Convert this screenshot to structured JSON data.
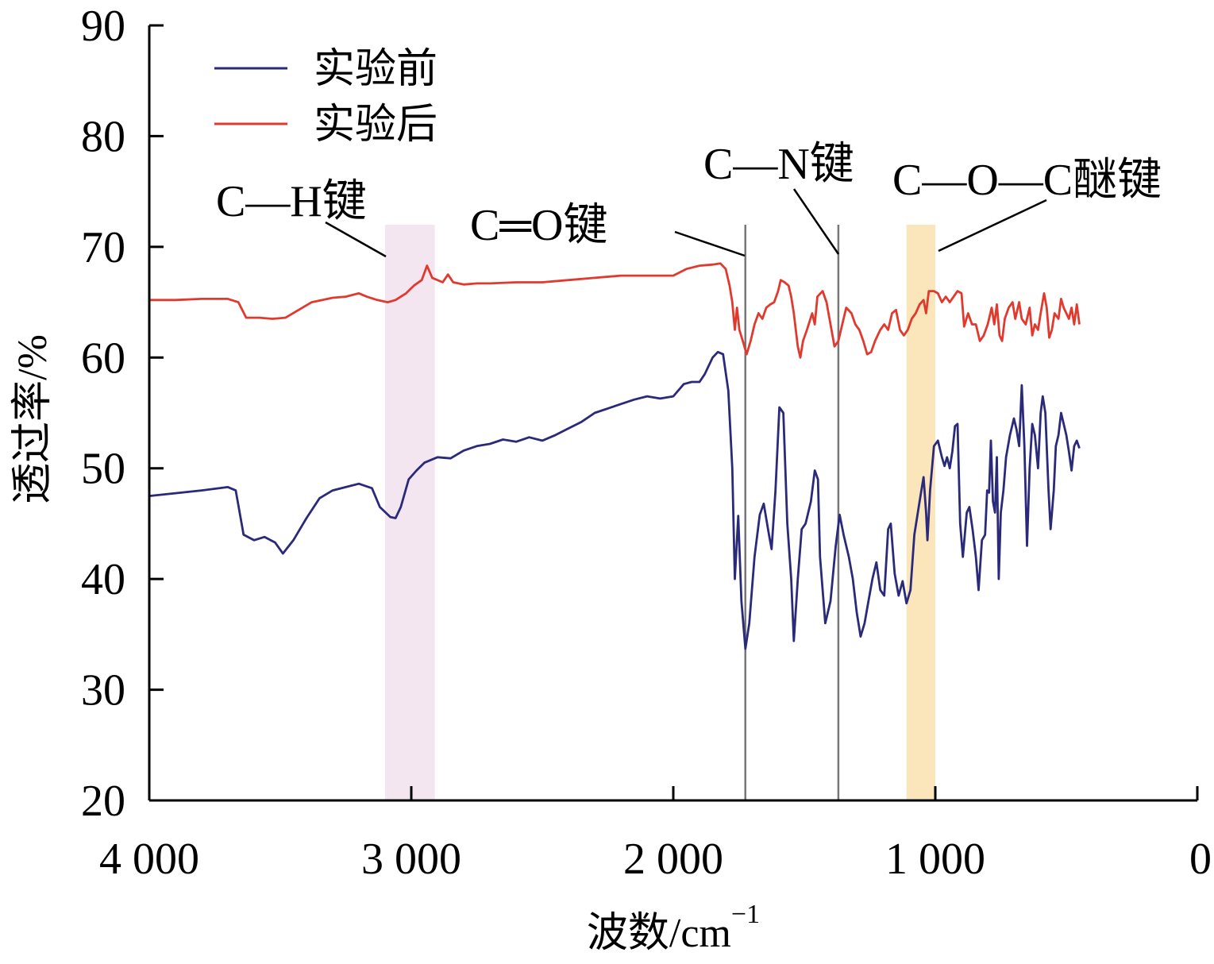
{
  "chart_data": {
    "type": "line",
    "xlabel": "波数/cm",
    "xlabel_sup": "−1",
    "ylabel": "透过率/%",
    "xlim": [
      4000,
      0
    ],
    "ylim": [
      20,
      90
    ],
    "x_ticks": [
      4000,
      3000,
      2000,
      1000,
      0
    ],
    "x_tick_labels": [
      "4 000",
      "3 000",
      "2 000",
      "1 000",
      "0"
    ],
    "y_ticks": [
      20,
      30,
      40,
      50,
      60,
      70,
      80,
      90
    ],
    "y_tick_labels": [
      "20",
      "30",
      "40",
      "50",
      "60",
      "70",
      "80",
      "90"
    ],
    "grid": false,
    "legend_position": "top-left",
    "series": [
      {
        "name": "实验前",
        "color": "#2b2a7a",
        "points": [
          [
            4000,
            47.5
          ],
          [
            3800,
            48.0
          ],
          [
            3700,
            48.3
          ],
          [
            3670,
            48.0
          ],
          [
            3640,
            44.0
          ],
          [
            3600,
            43.5
          ],
          [
            3560,
            43.8
          ],
          [
            3520,
            43.3
          ],
          [
            3490,
            42.3
          ],
          [
            3450,
            43.5
          ],
          [
            3400,
            45.5
          ],
          [
            3350,
            47.3
          ],
          [
            3300,
            48.0
          ],
          [
            3250,
            48.3
          ],
          [
            3200,
            48.6
          ],
          [
            3150,
            48.2
          ],
          [
            3120,
            46.5
          ],
          [
            3080,
            45.6
          ],
          [
            3060,
            45.5
          ],
          [
            3040,
            46.5
          ],
          [
            3010,
            49.0
          ],
          [
            2980,
            49.8
          ],
          [
            2950,
            50.5
          ],
          [
            2900,
            51.0
          ],
          [
            2850,
            50.9
          ],
          [
            2800,
            51.6
          ],
          [
            2750,
            52.0
          ],
          [
            2700,
            52.2
          ],
          [
            2650,
            52.6
          ],
          [
            2600,
            52.4
          ],
          [
            2550,
            52.8
          ],
          [
            2500,
            52.5
          ],
          [
            2450,
            53.0
          ],
          [
            2400,
            53.6
          ],
          [
            2350,
            54.2
          ],
          [
            2300,
            55.0
          ],
          [
            2250,
            55.4
          ],
          [
            2200,
            55.8
          ],
          [
            2150,
            56.2
          ],
          [
            2100,
            56.5
          ],
          [
            2050,
            56.3
          ],
          [
            2000,
            56.5
          ],
          [
            1960,
            57.6
          ],
          [
            1930,
            57.8
          ],
          [
            1900,
            57.8
          ],
          [
            1880,
            58.5
          ],
          [
            1850,
            60.0
          ],
          [
            1830,
            60.5
          ],
          [
            1810,
            60.3
          ],
          [
            1790,
            57.0
          ],
          [
            1775,
            50.0
          ],
          [
            1765,
            40.0
          ],
          [
            1752,
            45.7
          ],
          [
            1740,
            38.0
          ],
          [
            1725,
            33.7
          ],
          [
            1710,
            36.0
          ],
          [
            1690,
            42.0
          ],
          [
            1670,
            45.8
          ],
          [
            1655,
            46.8
          ],
          [
            1635,
            44.0
          ],
          [
            1625,
            42.7
          ],
          [
            1610,
            48.0
          ],
          [
            1595,
            55.5
          ],
          [
            1580,
            55.0
          ],
          [
            1565,
            45.0
          ],
          [
            1550,
            40.0
          ],
          [
            1540,
            34.4
          ],
          [
            1525,
            40.0
          ],
          [
            1510,
            44.5
          ],
          [
            1495,
            45.0
          ],
          [
            1475,
            47.0
          ],
          [
            1460,
            49.8
          ],
          [
            1448,
            49.0
          ],
          [
            1440,
            42.0
          ],
          [
            1420,
            36.0
          ],
          [
            1400,
            38.0
          ],
          [
            1380,
            43.0
          ],
          [
            1365,
            45.8
          ],
          [
            1350,
            44.0
          ],
          [
            1330,
            42.0
          ],
          [
            1315,
            40.0
          ],
          [
            1300,
            37.0
          ],
          [
            1285,
            34.8
          ],
          [
            1270,
            36.0
          ],
          [
            1255,
            38.0
          ],
          [
            1240,
            40.0
          ],
          [
            1225,
            41.5
          ],
          [
            1210,
            39.0
          ],
          [
            1195,
            38.5
          ],
          [
            1180,
            44.5
          ],
          [
            1170,
            45.0
          ],
          [
            1155,
            40.5
          ],
          [
            1140,
            38.5
          ],
          [
            1125,
            39.8
          ],
          [
            1110,
            37.8
          ],
          [
            1095,
            39.0
          ],
          [
            1080,
            44.0
          ],
          [
            1060,
            47.0
          ],
          [
            1045,
            49.2
          ],
          [
            1035,
            46.0
          ],
          [
            1030,
            43.5
          ],
          [
            1020,
            48.0
          ],
          [
            1005,
            52.0
          ],
          [
            990,
            52.5
          ],
          [
            975,
            51.0
          ],
          [
            965,
            50.2
          ],
          [
            955,
            51.0
          ],
          [
            945,
            50.0
          ],
          [
            935,
            51.5
          ],
          [
            925,
            53.8
          ],
          [
            915,
            54.0
          ],
          [
            905,
            45.0
          ],
          [
            895,
            42.0
          ],
          [
            880,
            46.0
          ],
          [
            870,
            46.5
          ],
          [
            858,
            44.5
          ],
          [
            845,
            42.0
          ],
          [
            835,
            39.0
          ],
          [
            822,
            43.5
          ],
          [
            810,
            44.0
          ],
          [
            802,
            48.0
          ],
          [
            795,
            47.8
          ],
          [
            788,
            52.5
          ],
          [
            780,
            47.0
          ],
          [
            772,
            46.0
          ],
          [
            765,
            51.0
          ],
          [
            758,
            40.0
          ],
          [
            750,
            46.0
          ],
          [
            740,
            48.0
          ],
          [
            730,
            51.0
          ],
          [
            715,
            53.0
          ],
          [
            700,
            54.5
          ],
          [
            690,
            53.5
          ],
          [
            680,
            52.0
          ],
          [
            670,
            57.5
          ],
          [
            660,
            52.0
          ],
          [
            650,
            43.0
          ],
          [
            640,
            50.0
          ],
          [
            630,
            54.0
          ],
          [
            620,
            53.0
          ],
          [
            608,
            50.0
          ],
          [
            598,
            55.0
          ],
          [
            590,
            56.5
          ],
          [
            580,
            55.0
          ],
          [
            568,
            48.0
          ],
          [
            560,
            44.5
          ],
          [
            548,
            48.0
          ],
          [
            540,
            52.0
          ],
          [
            530,
            53.0
          ],
          [
            520,
            55.0
          ],
          [
            510,
            54.0
          ],
          [
            500,
            53.0
          ],
          [
            490,
            51.5
          ],
          [
            480,
            49.8
          ],
          [
            470,
            52.0
          ],
          [
            460,
            52.5
          ],
          [
            450,
            51.8
          ]
        ]
      },
      {
        "name": "实验后",
        "color": "#e03a2e",
        "points": [
          [
            4000,
            65.2
          ],
          [
            3900,
            65.2
          ],
          [
            3800,
            65.3
          ],
          [
            3700,
            65.3
          ],
          [
            3660,
            65.0
          ],
          [
            3630,
            63.6
          ],
          [
            3580,
            63.6
          ],
          [
            3530,
            63.5
          ],
          [
            3480,
            63.6
          ],
          [
            3430,
            64.3
          ],
          [
            3380,
            65.0
          ],
          [
            3300,
            65.4
          ],
          [
            3250,
            65.5
          ],
          [
            3200,
            65.8
          ],
          [
            3170,
            65.5
          ],
          [
            3130,
            65.2
          ],
          [
            3090,
            65.0
          ],
          [
            3060,
            65.2
          ],
          [
            3020,
            65.8
          ],
          [
            2990,
            66.5
          ],
          [
            2960,
            67.0
          ],
          [
            2940,
            68.3
          ],
          [
            2920,
            67.2
          ],
          [
            2880,
            66.8
          ],
          [
            2860,
            67.5
          ],
          [
            2840,
            66.8
          ],
          [
            2800,
            66.6
          ],
          [
            2750,
            66.7
          ],
          [
            2700,
            66.7
          ],
          [
            2600,
            66.8
          ],
          [
            2500,
            66.8
          ],
          [
            2400,
            67.0
          ],
          [
            2300,
            67.2
          ],
          [
            2200,
            67.4
          ],
          [
            2100,
            67.4
          ],
          [
            2000,
            67.4
          ],
          [
            1950,
            68.0
          ],
          [
            1900,
            68.3
          ],
          [
            1850,
            68.4
          ],
          [
            1820,
            68.5
          ],
          [
            1800,
            68.0
          ],
          [
            1785,
            66.5
          ],
          [
            1775,
            65.0
          ],
          [
            1765,
            62.5
          ],
          [
            1757,
            64.5
          ],
          [
            1748,
            62.5
          ],
          [
            1735,
            61.5
          ],
          [
            1720,
            60.3
          ],
          [
            1705,
            61.5
          ],
          [
            1690,
            63.0
          ],
          [
            1675,
            64.0
          ],
          [
            1660,
            63.5
          ],
          [
            1645,
            64.5
          ],
          [
            1630,
            64.8
          ],
          [
            1615,
            65.0
          ],
          [
            1600,
            66.0
          ],
          [
            1590,
            67.0
          ],
          [
            1575,
            66.8
          ],
          [
            1560,
            66.5
          ],
          [
            1550,
            65.5
          ],
          [
            1540,
            64.0
          ],
          [
            1525,
            61.0
          ],
          [
            1515,
            60.0
          ],
          [
            1505,
            61.5
          ],
          [
            1490,
            62.5
          ],
          [
            1470,
            64.0
          ],
          [
            1460,
            63.0
          ],
          [
            1450,
            65.5
          ],
          [
            1430,
            66.0
          ],
          [
            1415,
            65.0
          ],
          [
            1400,
            63.0
          ],
          [
            1385,
            61.0
          ],
          [
            1370,
            61.5
          ],
          [
            1355,
            63.0
          ],
          [
            1340,
            64.5
          ],
          [
            1320,
            64.0
          ],
          [
            1305,
            63.0
          ],
          [
            1290,
            62.5
          ],
          [
            1275,
            61.5
          ],
          [
            1260,
            60.3
          ],
          [
            1245,
            60.5
          ],
          [
            1230,
            61.5
          ],
          [
            1210,
            62.5
          ],
          [
            1195,
            63.0
          ],
          [
            1180,
            62.5
          ],
          [
            1165,
            64.0
          ],
          [
            1150,
            64.3
          ],
          [
            1135,
            62.5
          ],
          [
            1120,
            62.0
          ],
          [
            1105,
            62.5
          ],
          [
            1090,
            63.5
          ],
          [
            1075,
            64.0
          ],
          [
            1060,
            64.8
          ],
          [
            1045,
            65.2
          ],
          [
            1035,
            64.0
          ],
          [
            1025,
            66.0
          ],
          [
            1005,
            66.0
          ],
          [
            990,
            65.8
          ],
          [
            975,
            65.0
          ],
          [
            960,
            65.5
          ],
          [
            945,
            65.0
          ],
          [
            930,
            65.5
          ],
          [
            915,
            66.0
          ],
          [
            900,
            65.8
          ],
          [
            890,
            62.8
          ],
          [
            875,
            64.0
          ],
          [
            860,
            63.0
          ],
          [
            845,
            63.0
          ],
          [
            830,
            61.5
          ],
          [
            815,
            62.0
          ],
          [
            800,
            63.0
          ],
          [
            785,
            64.5
          ],
          [
            775,
            63.0
          ],
          [
            765,
            64.8
          ],
          [
            755,
            62.0
          ],
          [
            745,
            61.5
          ],
          [
            735,
            63.5
          ],
          [
            720,
            64.5
          ],
          [
            705,
            65.0
          ],
          [
            695,
            63.5
          ],
          [
            680,
            65.0
          ],
          [
            670,
            63.5
          ],
          [
            655,
            63.0
          ],
          [
            640,
            64.5
          ],
          [
            630,
            62.0
          ],
          [
            620,
            63.0
          ],
          [
            608,
            62.5
          ],
          [
            598,
            64.0
          ],
          [
            585,
            65.8
          ],
          [
            575,
            64.5
          ],
          [
            565,
            61.8
          ],
          [
            555,
            62.5
          ],
          [
            545,
            64.0
          ],
          [
            530,
            63.5
          ],
          [
            520,
            65.3
          ],
          [
            510,
            64.5
          ],
          [
            500,
            64.0
          ],
          [
            490,
            63.5
          ],
          [
            480,
            64.5
          ],
          [
            470,
            63.0
          ],
          [
            460,
            64.8
          ],
          [
            450,
            63.0
          ]
        ]
      }
    ],
    "annotations": {
      "ch": "C—H键",
      "co_double": "C═O键",
      "cn": "C—N键",
      "coc": "C—O—C醚键"
    },
    "highlight_bands": [
      {
        "band": "ch",
        "x_range": [
          3100,
          2910
        ],
        "color": "#f3e6f1"
      },
      {
        "band": "coc",
        "x_range": [
          1110,
          1000
        ],
        "color": "#fbe5bb"
      }
    ],
    "reference_lines": [
      1725,
      1370
    ]
  }
}
